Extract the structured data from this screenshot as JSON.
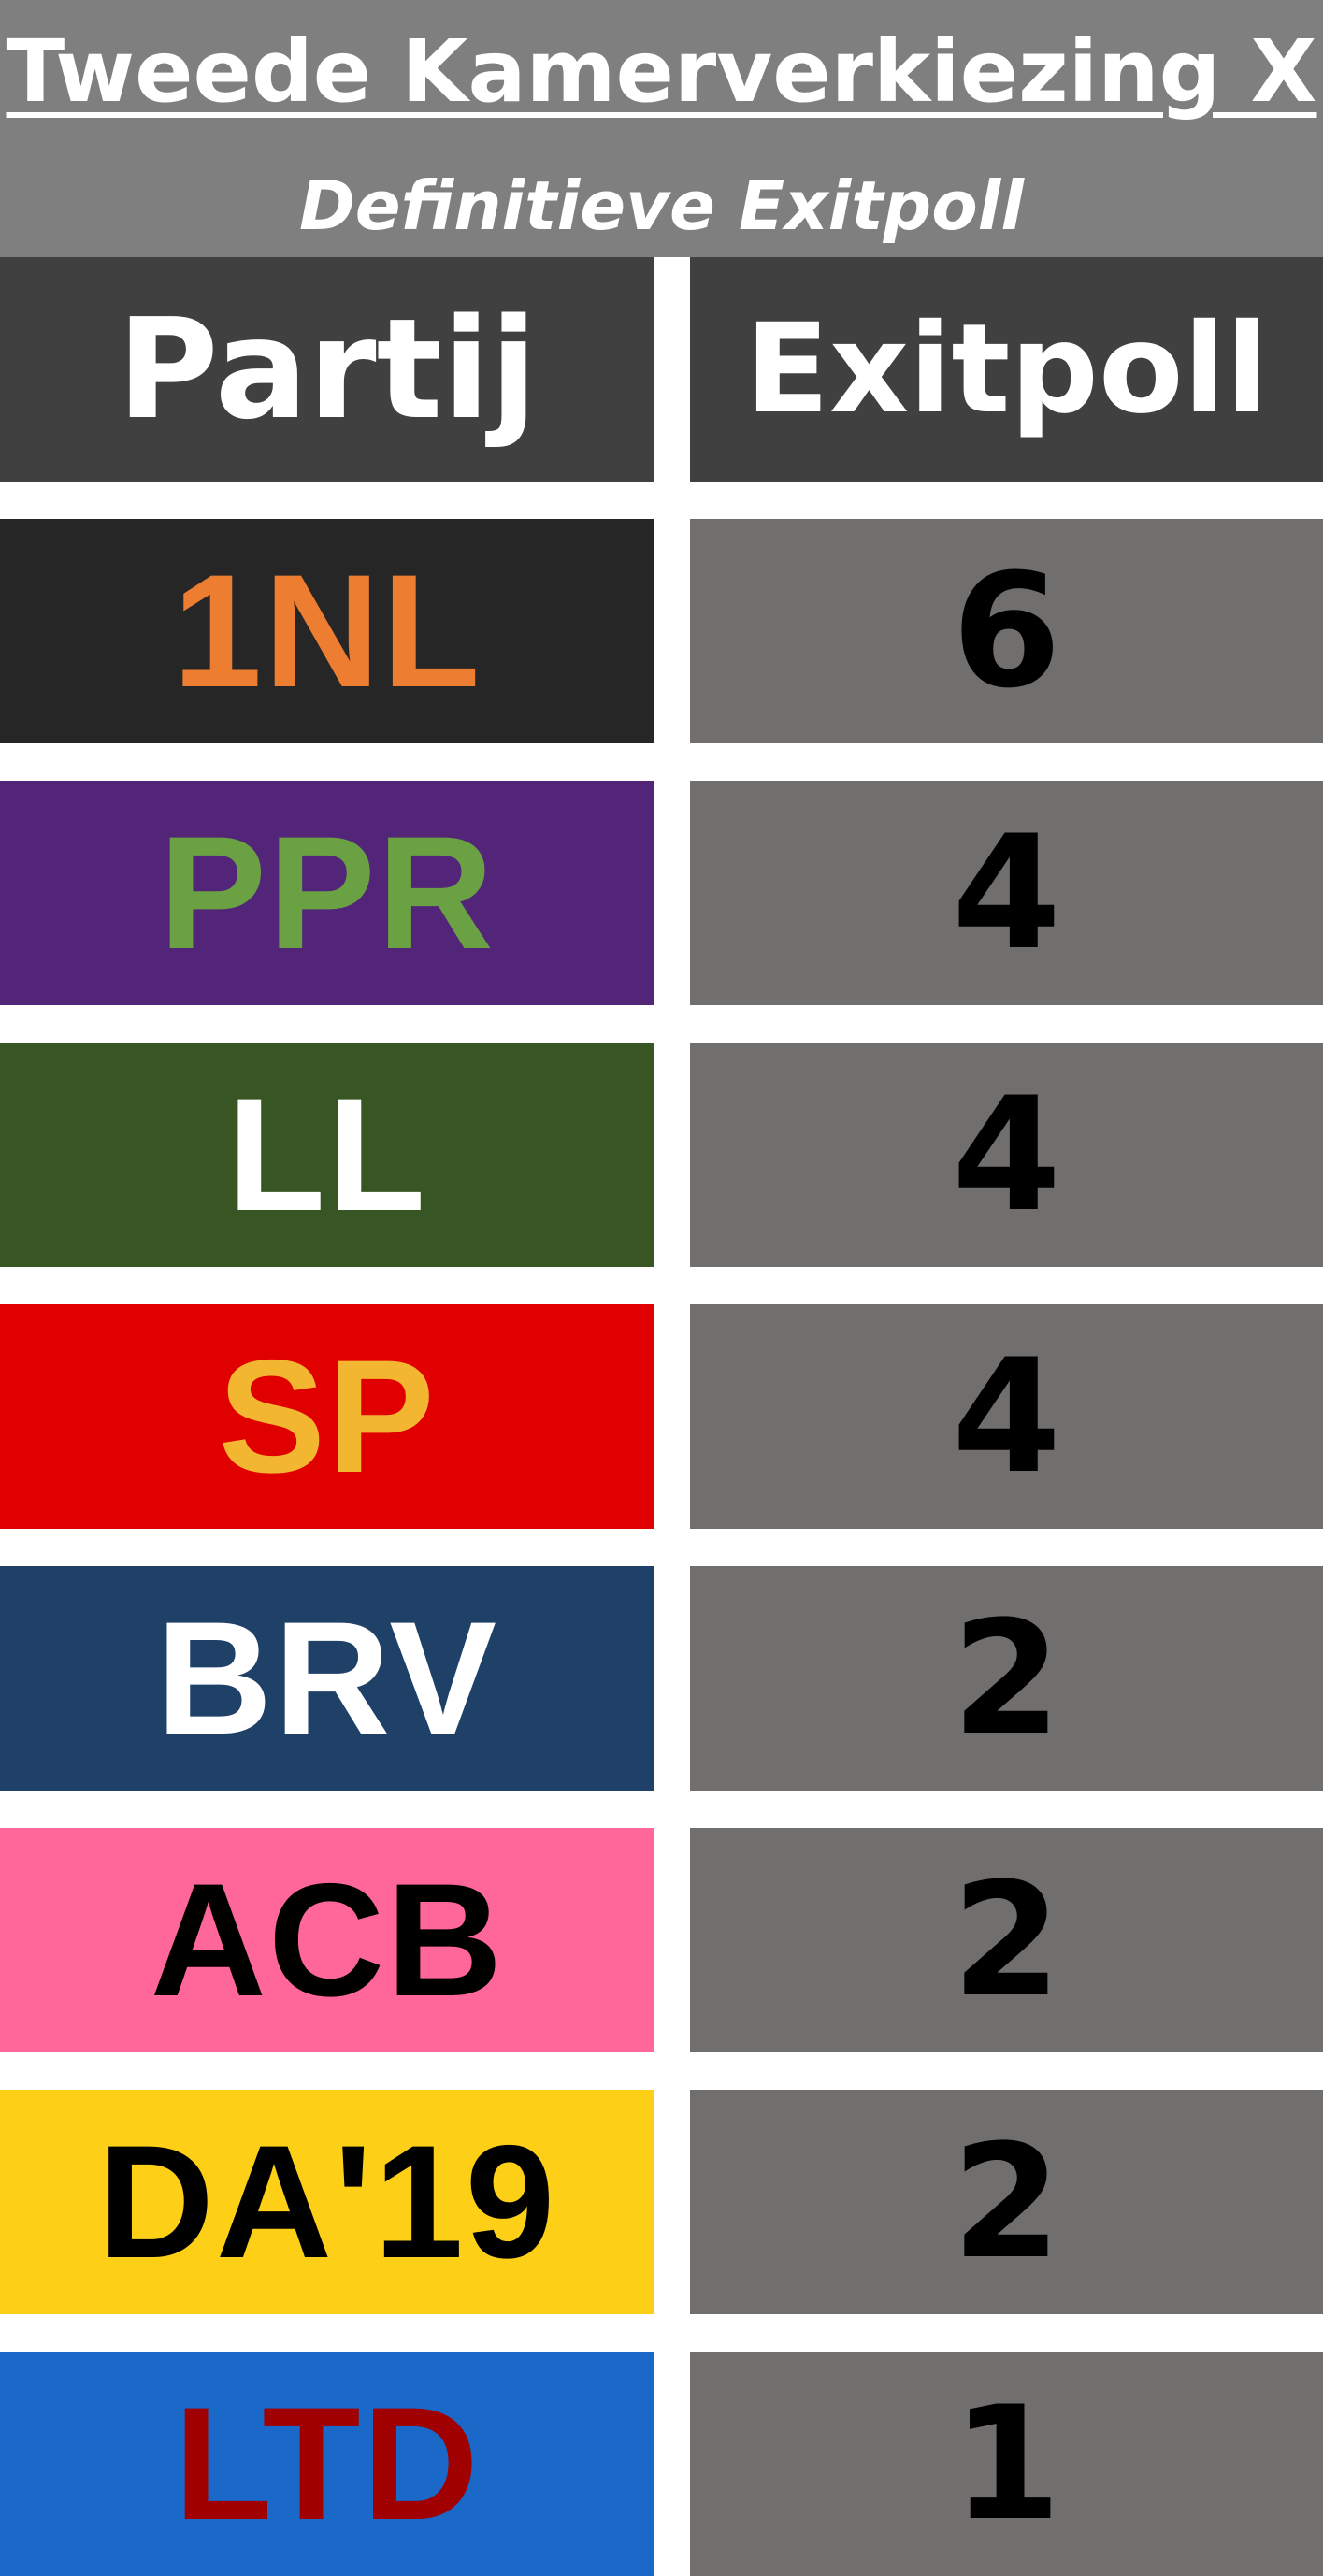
{
  "header": {
    "title": "Tweede Kamerverkiezing X",
    "subtitle": "Definitieve Exitpoll"
  },
  "columns": {
    "party": "Partij",
    "exitpoll": "Exitpoll"
  },
  "rows": [
    {
      "party": "1NL",
      "seats": "6",
      "bg": "#262626",
      "fg": "#ed7d31"
    },
    {
      "party": "PPR",
      "seats": "4",
      "bg": "#532578",
      "fg": "#6aa143"
    },
    {
      "party": "LL",
      "seats": "4",
      "bg": "#375623",
      "fg": "#ffffff"
    },
    {
      "party": "SP",
      "seats": "4",
      "bg": "#e00000",
      "fg": "#f2b630"
    },
    {
      "party": "BRV",
      "seats": "2",
      "bg": "#1f4168",
      "fg": "#ffffff"
    },
    {
      "party": "ACB",
      "seats": "2",
      "bg": "#ff6699",
      "fg": "#000000"
    },
    {
      "party": "DA'19",
      "seats": "2",
      "bg": "#fdd017",
      "fg": "#000000"
    },
    {
      "party": "LTD",
      "seats": "1",
      "bg": "#1a68c8",
      "fg": "#a00000"
    }
  ],
  "colors": {
    "header_bg": "#7f7f7f",
    "column_header_bg": "#404040",
    "seat_cell_bg": "#716e6e"
  }
}
